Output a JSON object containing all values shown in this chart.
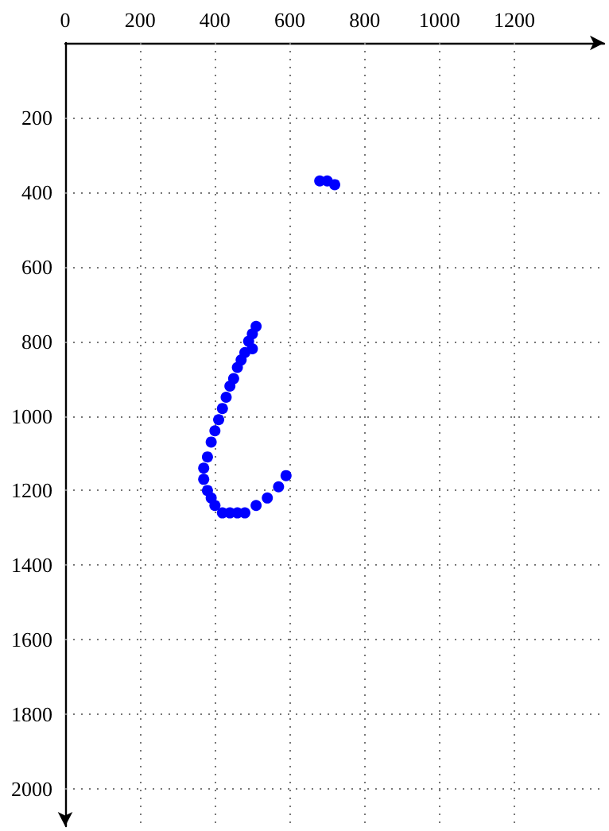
{
  "chart_data": {
    "type": "scatter",
    "marker": "circle",
    "grid": true,
    "xlim": [
      0,
      1440
    ],
    "ylim": [
      2100,
      0
    ],
    "xticks": [
      0,
      200,
      400,
      600,
      800,
      1000,
      1200
    ],
    "yticks": [
      200,
      400,
      600,
      800,
      1000,
      1200,
      1400,
      1600,
      1800,
      2000
    ],
    "series": [
      {
        "color": "#0000ff",
        "x": [
          680,
          700,
          720,
          510,
          500,
          490,
          500,
          480,
          470,
          460,
          450,
          440,
          430,
          420,
          410,
          400,
          390,
          380,
          370,
          370,
          380,
          390,
          400,
          420,
          440,
          460,
          480,
          510,
          540,
          570,
          590
        ],
        "values": [
          370,
          370,
          380,
          760,
          780,
          800,
          820,
          830,
          850,
          870,
          900,
          920,
          950,
          980,
          1010,
          1040,
          1070,
          1110,
          1140,
          1170,
          1200,
          1220,
          1240,
          1260,
          1260,
          1260,
          1260,
          1240,
          1220,
          1190,
          1160
        ]
      }
    ]
  }
}
